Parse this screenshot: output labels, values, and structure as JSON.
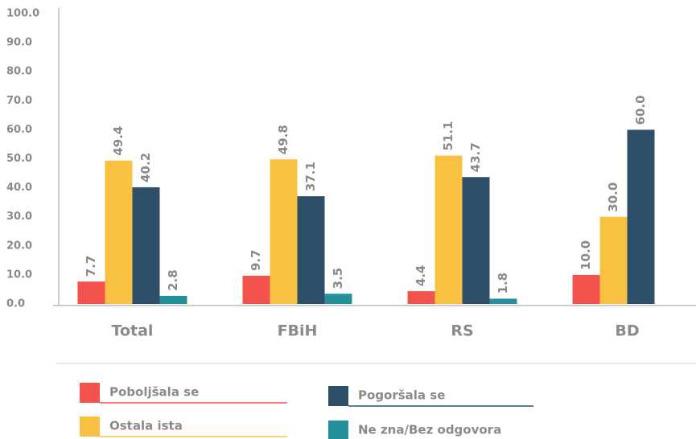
{
  "chart_data": {
    "type": "bar",
    "categories": [
      "Total",
      "FBiH",
      "RS",
      "BD"
    ],
    "series": [
      {
        "name": "Poboljšala se",
        "color": "#f4524d",
        "values": [
          7.7,
          9.7,
          4.4,
          10.0
        ],
        "value_labels": [
          "7.7",
          "9.7",
          "4.4",
          "10.0"
        ]
      },
      {
        "name": "Ostala ista",
        "color": "#f9c142",
        "values": [
          49.4,
          49.8,
          51.1,
          30.0
        ],
        "value_labels": [
          "49.4",
          "49.8",
          "51.1",
          "30.0"
        ]
      },
      {
        "name": "Pogoršala se",
        "color": "#2e4f68",
        "values": [
          40.2,
          37.1,
          43.7,
          60.0
        ],
        "value_labels": [
          "40.2",
          "37.1",
          "43.7",
          "60.0"
        ]
      },
      {
        "name": "Ne zna/Bez odgovora",
        "color": "#23909b",
        "values": [
          2.8,
          3.5,
          1.8,
          null
        ],
        "value_labels": [
          "2.8",
          "3.5",
          "1.8",
          null
        ]
      }
    ],
    "ylim": [
      0,
      100
    ],
    "yticks": [
      {
        "value": 0,
        "label": "0.0"
      },
      {
        "value": 10,
        "label": "10.0"
      },
      {
        "value": 20,
        "label": "20.0"
      },
      {
        "value": 30,
        "label": "30.0"
      },
      {
        "value": 40,
        "label": "40.0"
      },
      {
        "value": 50,
        "label": "50.0"
      },
      {
        "value": 60,
        "label": "60.0"
      },
      {
        "value": 70,
        "label": "70.0"
      },
      {
        "value": 80,
        "label": "80.0"
      },
      {
        "value": 90,
        "label": "90.0"
      },
      {
        "value": 100,
        "label": "100.0"
      }
    ],
    "legend": "bottom"
  }
}
